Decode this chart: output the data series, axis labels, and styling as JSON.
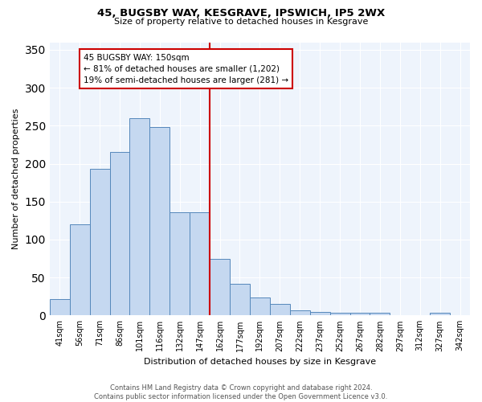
{
  "title1": "45, BUGSBY WAY, KESGRAVE, IPSWICH, IP5 2WX",
  "title2": "Size of property relative to detached houses in Kesgrave",
  "xlabel": "Distribution of detached houses by size in Kesgrave",
  "ylabel": "Number of detached properties",
  "bar_labels": [
    "41sqm",
    "56sqm",
    "71sqm",
    "86sqm",
    "101sqm",
    "116sqm",
    "132sqm",
    "147sqm",
    "162sqm",
    "177sqm",
    "192sqm",
    "207sqm",
    "222sqm",
    "237sqm",
    "252sqm",
    "267sqm",
    "282sqm",
    "297sqm",
    "312sqm",
    "327sqm",
    "342sqm"
  ],
  "bar_values": [
    22,
    120,
    193,
    215,
    260,
    248,
    136,
    136,
    75,
    42,
    24,
    15,
    7,
    5,
    3,
    3,
    3,
    0,
    0,
    3,
    0
  ],
  "bar_color": "#c5d8f0",
  "bar_edge_color": "#5588bb",
  "vline_index": 7.5,
  "vline_color": "#cc0000",
  "annotation_text": "45 BUGSBY WAY: 150sqm\n← 81% of detached houses are smaller (1,202)\n19% of semi-detached houses are larger (281) →",
  "annotation_box_color": "#ffffff",
  "annotation_box_edge": "#cc0000",
  "ylim": [
    0,
    360
  ],
  "yticks": [
    0,
    50,
    100,
    150,
    200,
    250,
    300,
    350
  ],
  "footnote": "Contains HM Land Registry data © Crown copyright and database right 2024.\nContains public sector information licensed under the Open Government Licence v3.0.",
  "bg_color": "#ffffff",
  "plot_bg_color": "#eef4fc",
  "grid_color": "#ffffff"
}
